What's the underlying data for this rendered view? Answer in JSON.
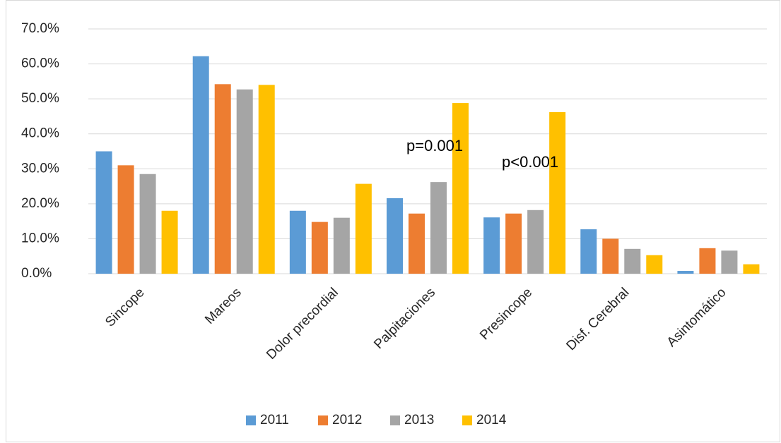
{
  "chart_data": {
    "type": "bar",
    "categories": [
      "Sincope",
      "Mareos",
      "Dolor precordial",
      "Palpitaciones",
      "Presincope",
      "Disf. Cerebral",
      "Asintomático"
    ],
    "series": [
      {
        "name": "2011",
        "color": "#5b9bd5",
        "values": [
          35,
          62.2,
          18,
          21.6,
          16.1,
          12.7,
          0.8
        ]
      },
      {
        "name": "2012",
        "color": "#ed7d31",
        "values": [
          31,
          54.2,
          14.8,
          17.2,
          17.2,
          10,
          7.3
        ]
      },
      {
        "name": "2013",
        "color": "#a5a5a5",
        "values": [
          28.5,
          52.7,
          16,
          26.2,
          18.2,
          7.1,
          6.6
        ]
      },
      {
        "name": "2014",
        "color": "#ffc000",
        "values": [
          18,
          54,
          25.7,
          48.8,
          46.2,
          5.3,
          2.7
        ]
      }
    ],
    "ylim": [
      0,
      70
    ],
    "yticks": [
      {
        "value": 0,
        "label": "0.0%"
      },
      {
        "value": 10,
        "label": "10.0%"
      },
      {
        "value": 20,
        "label": "20.0%"
      },
      {
        "value": 30,
        "label": "30.0%"
      },
      {
        "value": 40,
        "label": "40.0%"
      },
      {
        "value": 50,
        "label": "50.0%"
      },
      {
        "value": 60,
        "label": "60.0%"
      },
      {
        "value": 70,
        "label": "70.0%"
      }
    ],
    "grid": true,
    "legend": "bottom",
    "annotations": [
      "p=0.001",
      "p<0.001"
    ]
  }
}
